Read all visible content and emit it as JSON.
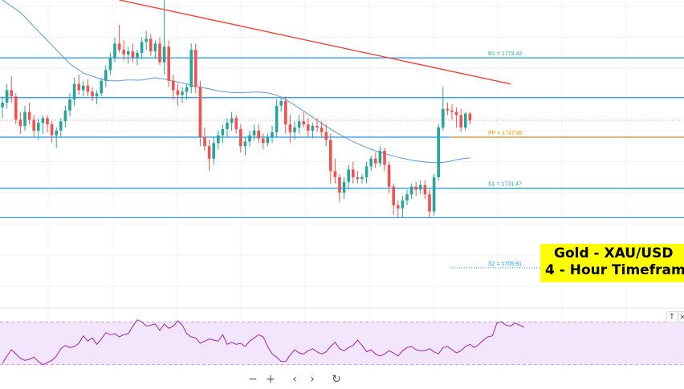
{
  "title": {
    "line1": "Gold - XAU/USD",
    "line2": "4 - Hour Timeframe"
  },
  "toolbar": [
    {
      "name": "zoom-out-button",
      "icon": "minus-icon",
      "glyph": "−"
    },
    {
      "name": "zoom-in-button",
      "icon": "plus-icon",
      "glyph": "+"
    },
    {
      "name": "scroll-left-button",
      "icon": "chevron-left-icon",
      "glyph": "‹"
    },
    {
      "name": "scroll-right-button",
      "icon": "chevron-right-icon",
      "glyph": "›"
    },
    {
      "name": "reset-chart-button",
      "icon": "reset-icon",
      "glyph": "↻"
    }
  ],
  "pane_controls": [
    {
      "name": "pane-up-button",
      "icon": "arrow-up-icon",
      "glyph": "↑"
    },
    {
      "name": "pane-close-button",
      "icon": "close-icon",
      "glyph": "×"
    }
  ],
  "colors": {
    "bull": "#26a69a",
    "bear": "#ef5350",
    "level": "#2196f3",
    "trend": "#f44336",
    "ma": "#5b9bd5",
    "rsi": "#9c27b0",
    "rsi_band": "#f3e5fc",
    "pp_label": "#ff9800"
  },
  "chart_data": [
    {
      "type": "candlestick",
      "instrument": "Gold - XAU/USD",
      "timeframe": "4 - Hour Timeframe",
      "ylim": [
        1694,
        1792
      ],
      "levels": [
        {
          "name": "R1",
          "label": "R1 = 1773.42",
          "value": 1773.42
        },
        {
          "name": "PP",
          "label": "PP = 1747.86",
          "value": 1747.86
        },
        {
          "name": "S1",
          "label": "S1 = 1731.47",
          "value": 1731.47
        },
        {
          "name": "S2",
          "label": "S2 = 1705.91",
          "value": 1705.91
        }
      ],
      "horizontal_lines": [
        1773.4,
        1760.6,
        1747.9,
        1731.5,
        1722.0
      ],
      "last_price": 1753.3,
      "candles": [
        [
          1757.5,
          1761.0,
          1754.0,
          1759.0
        ],
        [
          1759.0,
          1765.0,
          1757.0,
          1763.0
        ],
        [
          1763.0,
          1767.5,
          1759.0,
          1761.0
        ],
        [
          1761.0,
          1762.0,
          1752.0,
          1753.5
        ],
        [
          1753.5,
          1756.0,
          1749.0,
          1751.5
        ],
        [
          1751.5,
          1758.0,
          1750.0,
          1756.0
        ],
        [
          1756.0,
          1759.0,
          1752.0,
          1753.5
        ],
        [
          1753.5,
          1755.0,
          1748.0,
          1750.0
        ],
        [
          1750.0,
          1754.0,
          1747.0,
          1752.5
        ],
        [
          1752.5,
          1755.0,
          1749.0,
          1754.0
        ],
        [
          1754.0,
          1755.0,
          1749.5,
          1752.0
        ],
        [
          1752.0,
          1753.0,
          1746.0,
          1748.5
        ],
        [
          1748.5,
          1751.0,
          1744.5,
          1750.0
        ],
        [
          1750.0,
          1754.0,
          1748.0,
          1753.0
        ],
        [
          1753.0,
          1758.0,
          1751.0,
          1756.5
        ],
        [
          1756.5,
          1762.0,
          1754.5,
          1760.0
        ],
        [
          1760.0,
          1767.0,
          1758.0,
          1765.0
        ],
        [
          1765.0,
          1768.0,
          1761.5,
          1763.0
        ],
        [
          1763.0,
          1766.0,
          1761.0,
          1764.5
        ],
        [
          1764.5,
          1766.5,
          1761.0,
          1762.5
        ],
        [
          1762.5,
          1764.0,
          1759.5,
          1761.0
        ],
        [
          1761.0,
          1763.0,
          1758.5,
          1762.0
        ],
        [
          1762.0,
          1767.0,
          1761.0,
          1766.0
        ],
        [
          1766.0,
          1771.0,
          1764.0,
          1769.5
        ],
        [
          1769.5,
          1775.0,
          1768.0,
          1773.5
        ],
        [
          1773.5,
          1780.0,
          1772.0,
          1778.0
        ],
        [
          1778.0,
          1784.0,
          1775.0,
          1776.0
        ],
        [
          1776.0,
          1779.0,
          1772.5,
          1774.5
        ],
        [
          1774.5,
          1777.0,
          1771.5,
          1775.5
        ],
        [
          1775.5,
          1778.0,
          1772.0,
          1773.5
        ],
        [
          1773.5,
          1776.0,
          1771.0,
          1775.0
        ],
        [
          1775.0,
          1780.0,
          1773.0,
          1778.5
        ],
        [
          1778.5,
          1782.0,
          1776.0,
          1779.5
        ],
        [
          1779.5,
          1781.0,
          1774.0,
          1775.5
        ],
        [
          1775.5,
          1779.0,
          1773.0,
          1778.0
        ],
        [
          1778.0,
          1780.0,
          1771.0,
          1772.0
        ],
        [
          1772.0,
          1792.0,
          1768.0,
          1777.0
        ],
        [
          1777.0,
          1779.0,
          1764.0,
          1766.0
        ],
        [
          1766.0,
          1768.0,
          1760.0,
          1763.0
        ],
        [
          1763.0,
          1765.0,
          1758.0,
          1761.5
        ],
        [
          1761.5,
          1764.0,
          1759.0,
          1762.5
        ],
        [
          1762.5,
          1765.0,
          1760.0,
          1764.0
        ],
        [
          1764.0,
          1778.0,
          1762.0,
          1776.0
        ],
        [
          1776.0,
          1778.0,
          1762.0,
          1764.0
        ],
        [
          1764.0,
          1766.0,
          1745.0,
          1748.0
        ],
        [
          1748.0,
          1751.0,
          1743.5,
          1745.0
        ],
        [
          1745.0,
          1747.0,
          1737.0,
          1741.0
        ],
        [
          1741.0,
          1748.0,
          1739.0,
          1746.0
        ],
        [
          1746.0,
          1750.0,
          1744.0,
          1748.5
        ],
        [
          1748.5,
          1752.0,
          1746.0,
          1750.5
        ],
        [
          1750.5,
          1754.0,
          1748.0,
          1752.5
        ],
        [
          1752.5,
          1756.0,
          1750.0,
          1754.0
        ],
        [
          1754.0,
          1755.0,
          1749.0,
          1750.5
        ],
        [
          1750.5,
          1752.0,
          1743.0,
          1745.0
        ],
        [
          1745.0,
          1748.0,
          1742.0,
          1746.5
        ],
        [
          1746.5,
          1750.0,
          1745.0,
          1748.5
        ],
        [
          1748.5,
          1752.0,
          1747.0,
          1750.0
        ],
        [
          1750.0,
          1752.0,
          1746.0,
          1747.5
        ],
        [
          1747.5,
          1749.0,
          1744.0,
          1746.0
        ],
        [
          1746.0,
          1749.0,
          1745.0,
          1748.0
        ],
        [
          1748.0,
          1751.5,
          1746.0,
          1749.5
        ],
        [
          1749.5,
          1760.0,
          1748.0,
          1758.0
        ],
        [
          1758.0,
          1761.0,
          1756.0,
          1759.5
        ],
        [
          1759.5,
          1761.0,
          1749.0,
          1752.0
        ],
        [
          1752.0,
          1755.0,
          1746.0,
          1749.5
        ],
        [
          1749.5,
          1753.0,
          1747.0,
          1751.0
        ],
        [
          1751.0,
          1755.0,
          1749.0,
          1753.0
        ],
        [
          1753.0,
          1756.0,
          1751.0,
          1752.0
        ],
        [
          1752.0,
          1754.0,
          1748.0,
          1750.0
        ],
        [
          1750.0,
          1752.5,
          1747.5,
          1751.5
        ],
        [
          1751.5,
          1754.0,
          1749.5,
          1751.0
        ],
        [
          1751.0,
          1753.0,
          1748.0,
          1749.5
        ],
        [
          1749.5,
          1752.0,
          1745.0,
          1747.0
        ],
        [
          1747.0,
          1749.0,
          1733.0,
          1737.0
        ],
        [
          1737.0,
          1741.0,
          1733.0,
          1735.0
        ],
        [
          1735.0,
          1736.0,
          1727.0,
          1730.0
        ],
        [
          1730.0,
          1735.0,
          1728.0,
          1733.5
        ],
        [
          1733.5,
          1739.0,
          1731.0,
          1737.5
        ],
        [
          1737.5,
          1740.0,
          1733.0,
          1735.0
        ],
        [
          1735.0,
          1737.0,
          1733.0,
          1734.5
        ],
        [
          1734.5,
          1736.0,
          1733.0,
          1735.0
        ],
        [
          1735.0,
          1740.0,
          1733.0,
          1738.5
        ],
        [
          1738.5,
          1742.0,
          1737.0,
          1741.0
        ],
        [
          1741.0,
          1743.0,
          1738.0,
          1739.5
        ],
        [
          1739.5,
          1745.0,
          1738.5,
          1743.5
        ],
        [
          1743.5,
          1744.5,
          1737.0,
          1739.0
        ],
        [
          1739.0,
          1740.0,
          1730.0,
          1732.0
        ],
        [
          1732.0,
          1733.0,
          1723.0,
          1726.0
        ],
        [
          1726.0,
          1727.5,
          1722.0,
          1725.0
        ],
        [
          1725.0,
          1729.0,
          1722.0,
          1727.5
        ],
        [
          1727.5,
          1731.0,
          1726.0,
          1729.5
        ],
        [
          1729.5,
          1733.0,
          1728.0,
          1732.0
        ],
        [
          1732.0,
          1733.5,
          1729.0,
          1731.0
        ],
        [
          1731.0,
          1734.0,
          1729.5,
          1732.5
        ],
        [
          1732.5,
          1734.0,
          1728.0,
          1729.5
        ],
        [
          1729.5,
          1731.0,
          1722.0,
          1724.0
        ],
        [
          1724.0,
          1736.0,
          1722.5,
          1735.0
        ],
        [
          1735.0,
          1752.0,
          1734.0,
          1751.0
        ],
        [
          1751.0,
          1764.0,
          1750.0,
          1757.0
        ],
        [
          1757.0,
          1759.0,
          1755.0,
          1756.5
        ],
        [
          1756.5,
          1758.5,
          1753.5,
          1756.0
        ],
        [
          1756.0,
          1757.5,
          1751.0,
          1755.0
        ],
        [
          1755.0,
          1757.0,
          1749.5,
          1751.0
        ],
        [
          1751.0,
          1756.0,
          1750.0,
          1755.5
        ],
        [
          1755.5,
          1756.0,
          1752.0,
          1753.3
        ]
      ],
      "moving_average": [
        1792,
        1791,
        1790,
        1789,
        1788,
        1786.5,
        1785,
        1783.5,
        1782,
        1780.5,
        1779,
        1777.5,
        1776,
        1774.5,
        1773,
        1771.5,
        1770.5,
        1769.5,
        1768.5,
        1768,
        1767.5,
        1767,
        1766.5,
        1766.2,
        1766,
        1766,
        1766,
        1766.2,
        1766.3,
        1766.3,
        1766.2,
        1766.3,
        1766.5,
        1766.8,
        1767,
        1766.8,
        1766.6,
        1766.3,
        1766,
        1765.6,
        1765.3,
        1765,
        1764.6,
        1764.2,
        1764,
        1763.7,
        1763.4,
        1763.1,
        1762.8,
        1762.6,
        1762.4,
        1762.3,
        1762.2,
        1762.2,
        1762.3,
        1762.3,
        1762.4,
        1762.4,
        1762.3,
        1762.1,
        1761.8,
        1761.4,
        1760.7,
        1760,
        1759.1,
        1758.2,
        1757.2,
        1756.3,
        1755.3,
        1754.3,
        1753.3,
        1752.3,
        1751.4,
        1750.5,
        1749.6,
        1748.8,
        1748,
        1747.2,
        1746.5,
        1745.8,
        1745.2,
        1744.6,
        1744,
        1743.5,
        1743,
        1742.6,
        1742.2,
        1741.8,
        1741.4,
        1741.1,
        1740.8,
        1740.5,
        1740.3,
        1740.1,
        1739.9,
        1739.8,
        1739.7,
        1739.7,
        1739.8,
        1740,
        1740.3,
        1740.6,
        1740.9,
        1741.1,
        1741.2
      ],
      "trendline": {
        "from": [
          26,
          1792
        ],
        "to": [
          113,
          1765
        ]
      }
    },
    {
      "type": "line",
      "indicator": "RSI",
      "ylim": [
        20,
        80
      ],
      "band": [
        30,
        70
      ],
      "values": [
        31,
        38,
        44,
        40,
        36,
        34,
        35,
        37,
        33,
        30,
        32,
        34,
        38,
        45,
        48,
        46,
        47,
        50,
        57,
        52,
        55,
        49,
        54,
        60,
        58,
        59,
        56,
        58,
        59,
        66,
        72,
        70,
        66,
        67,
        68,
        62,
        68,
        64,
        66,
        71,
        67,
        59,
        56,
        55,
        50,
        52,
        54,
        53,
        52,
        58,
        49,
        51,
        49,
        50,
        47,
        52,
        55,
        58,
        56,
        47,
        40,
        37,
        33,
        33,
        39,
        44,
        41,
        40,
        43,
        45,
        42,
        40,
        42,
        47,
        51,
        45,
        43,
        46,
        48,
        53,
        48,
        42,
        44,
        40,
        38,
        40,
        43,
        41,
        38,
        43,
        46,
        47,
        44,
        43,
        43,
        45,
        42,
        40,
        46,
        47,
        44,
        41,
        43,
        47,
        49,
        46,
        49,
        53,
        56,
        57,
        69,
        70,
        67,
        66,
        69,
        67,
        65
      ]
    }
  ]
}
